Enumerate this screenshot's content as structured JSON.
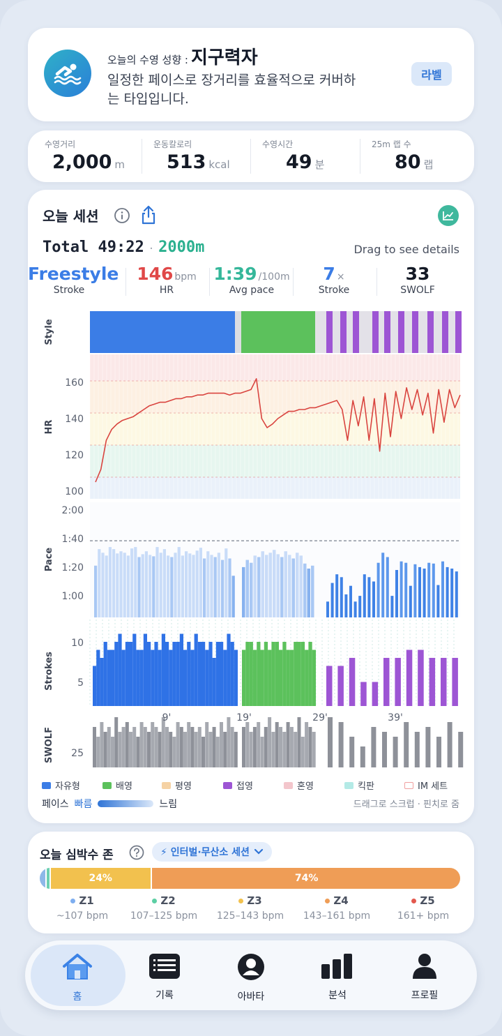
{
  "hero": {
    "prefix": "오늘의 수영 성향 :",
    "type_name": "지구력자",
    "description": "일정한 페이스로 장거리를 효율적으로 커버하는 타입입니다.",
    "label_button": "라벨",
    "icon": "swimmer-icon"
  },
  "stats": [
    {
      "title": "수영거리",
      "value": "2,000",
      "unit": "m"
    },
    {
      "title": "운동칼로리",
      "value": "513",
      "unit": "kcal"
    },
    {
      "title": "수영시간",
      "value": "49",
      "unit": "분"
    },
    {
      "title": "25m 랩 수",
      "value": "80",
      "unit": "랩"
    }
  ],
  "session": {
    "title": "오늘 세션",
    "total_label": "Total 49:22",
    "dot": "·",
    "total_distance": "2000m",
    "drag_hint": "Drag to see details",
    "metrics": [
      {
        "value": "Freestyle",
        "unit": "",
        "label": "Stroke",
        "color": "#3b7de6"
      },
      {
        "value": "146",
        "unit": "bpm",
        "label": "HR",
        "color": "#e04848"
      },
      {
        "value": "1:39",
        "unit": "/100m",
        "label": "Avg pace",
        "color": "#35b79a"
      },
      {
        "value": "7",
        "unit": "×",
        "label": "Stroke",
        "color": "#3b7de6"
      },
      {
        "value": "33",
        "unit": "",
        "label": "SWOLF",
        "color": "#141a26"
      }
    ]
  },
  "chart_data": {
    "type": "bar",
    "panels": {
      "style": {
        "label": "Style"
      },
      "hr": {
        "label": "HR",
        "yticks": [
          "160",
          "140",
          "120",
          "100"
        ]
      },
      "pace": {
        "label": "Pace",
        "yticks": [
          "2:00",
          "1:40",
          "1:20",
          "1:00"
        ]
      },
      "strokes": {
        "label": "Strokes",
        "yticks": [
          "10",
          "5"
        ]
      },
      "swolf": {
        "label": "SWOLF",
        "yticks": [
          "25"
        ]
      }
    },
    "xticks": [
      "9'",
      "19'",
      "29'",
      "39'"
    ],
    "hr_series": [
      105,
      112,
      128,
      134,
      137,
      139,
      140,
      141,
      143,
      145,
      147,
      148,
      149,
      149,
      150,
      151,
      151,
      152,
      152,
      153,
      153,
      154,
      154,
      154,
      154,
      153,
      154,
      154,
      155,
      156,
      162,
      140,
      135,
      137,
      140,
      142,
      144,
      144,
      145,
      145,
      146,
      146,
      147,
      148,
      149,
      150,
      145,
      128,
      150,
      136,
      152,
      128,
      151,
      122,
      154,
      130,
      155,
      140,
      157,
      145,
      156,
      142,
      154,
      132,
      156,
      138,
      156,
      146,
      153
    ],
    "pace_first": [
      1.32,
      1.55,
      1.5,
      1.46,
      1.58,
      1.55,
      1.49,
      1.52,
      1.5,
      1.46,
      1.56,
      1.58,
      1.44,
      1.48,
      1.52,
      1.47,
      1.45,
      1.58,
      1.5,
      1.55,
      1.46,
      1.44,
      1.5,
      1.58,
      1.46,
      1.52,
      1.49,
      1.47,
      1.53,
      1.57,
      1.42,
      1.52,
      1.47,
      1.44,
      1.5,
      1.4,
      1.56,
      1.42,
      1.18
    ],
    "pace_second": [
      1.3,
      1.4,
      1.36,
      1.46,
      1.44,
      1.52,
      1.47,
      1.5,
      1.54,
      1.48,
      1.44,
      1.52,
      1.47,
      1.42,
      1.5,
      1.46,
      1.35,
      1.28,
      1.32
    ],
    "pace_third": [
      0.82,
      1.08,
      1.2,
      1.16,
      0.92,
      1.04,
      0.82,
      0.9,
      1.2,
      1.16,
      1.1,
      1.36,
      1.5,
      1.44,
      0.9,
      1.26,
      1.38,
      1.36,
      1.04,
      1.34,
      1.3,
      1.28,
      1.36,
      1.35,
      1.05,
      1.38,
      1.3,
      1.28,
      1.24
    ],
    "pace_reference": "1:40",
    "strokes_first": [
      5,
      7,
      6,
      8,
      7,
      7,
      8,
      9,
      7,
      8,
      8,
      9,
      7,
      7,
      9,
      8,
      7,
      8,
      7,
      9,
      8,
      7,
      8,
      8,
      9,
      7,
      8,
      7,
      9,
      8,
      8,
      7,
      8,
      6,
      8,
      8,
      7,
      9,
      8,
      7
    ],
    "strokes_second": [
      7,
      8,
      8,
      7,
      8,
      7,
      8,
      7,
      8,
      8,
      7,
      8,
      7,
      7,
      8,
      8,
      8,
      7,
      8,
      7
    ],
    "strokes_third": [
      5,
      5,
      6,
      3,
      3,
      6,
      6,
      7,
      7,
      6,
      6,
      6
    ],
    "swolf_values": [
      26,
      24,
      27,
      25,
      26,
      24,
      28,
      25,
      26,
      27,
      25,
      26,
      24,
      27,
      26,
      25,
      27,
      26,
      25,
      28,
      26,
      25,
      24,
      27,
      26,
      25,
      27,
      26,
      25,
      26,
      24,
      27,
      25,
      26,
      24,
      27,
      25,
      28,
      26,
      25
    ],
    "legend": [
      {
        "name": "자유형",
        "color": "#3b7de6"
      },
      {
        "name": "배영",
        "color": "#5cc15c"
      },
      {
        "name": "평영",
        "color": "#f5c98e"
      },
      {
        "name": "접영",
        "color": "#9d55d4"
      },
      {
        "name": "혼영",
        "color": "#f3c6cc"
      },
      {
        "name": "킥판",
        "color": "#a8e6e2"
      },
      {
        "name": "IM 세트",
        "color": "#f0a0a0"
      }
    ]
  },
  "pace_legend": {
    "label": "페이스",
    "fast": "빠름",
    "slow": "느림"
  },
  "scrub_hint": "드래그로 스크럽 · 핀치로 줌",
  "zone": {
    "title": "오늘 심박수 존",
    "chip": "⚡ 인터벌·무산소 세션",
    "segments": [
      {
        "share": 0.014,
        "color": "#8db8e8",
        "label": ""
      },
      {
        "share": 0.009,
        "color": "#6ccfb0",
        "label": ""
      },
      {
        "share": 0.24,
        "color": "#f2c14e",
        "label": "24%"
      },
      {
        "share": 0.74,
        "color": "#ef9d56",
        "label": "74%"
      }
    ],
    "zones": [
      {
        "name": "Z1",
        "range": "~107 bpm",
        "color": "#7eaef0"
      },
      {
        "name": "Z2",
        "range": "107–125 bpm",
        "color": "#5ccfa4"
      },
      {
        "name": "Z3",
        "range": "125–143 bpm",
        "color": "#f2c14e"
      },
      {
        "name": "Z4",
        "range": "143–161 bpm",
        "color": "#ef9d56"
      },
      {
        "name": "Z5",
        "range": "161+ bpm",
        "color": "#e3584e"
      }
    ]
  },
  "nav": [
    {
      "label": "홈",
      "icon": "home-icon"
    },
    {
      "label": "기록",
      "icon": "list-icon"
    },
    {
      "label": "아바타",
      "icon": "avatar-icon"
    },
    {
      "label": "분석",
      "icon": "bar-chart-icon"
    },
    {
      "label": "프로필",
      "icon": "profile-icon"
    }
  ]
}
